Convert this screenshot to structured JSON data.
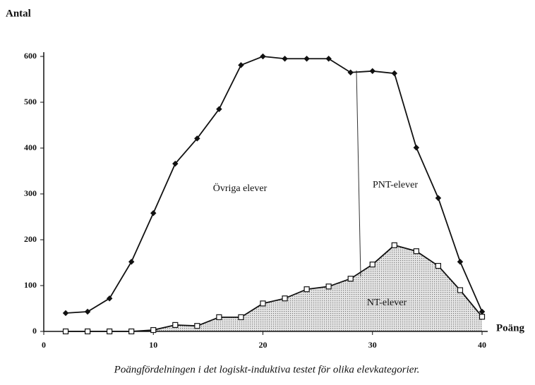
{
  "chart_data": {
    "type": "line",
    "y_label": "Antal",
    "x_label": "Poäng",
    "caption": "Poängfördelningen i det logiskt-induktiva testet för olika elevkategorier.",
    "annotation": "PNT-elever",
    "x": [
      2,
      4,
      6,
      8,
      10,
      12,
      14,
      16,
      18,
      20,
      22,
      24,
      26,
      28,
      30,
      32,
      34,
      36,
      38,
      40
    ],
    "series": [
      {
        "name": "Övriga elever",
        "color": "#111111",
        "values": [
          40,
          43,
          72,
          152,
          258,
          366,
          421,
          485,
          581,
          600,
          595,
          595,
          595,
          565,
          568,
          563,
          401,
          291,
          152,
          43
        ]
      },
      {
        "name": "NT-elever",
        "color": "#111111",
        "values": [
          0,
          0,
          0,
          0,
          3,
          14,
          12,
          31,
          31,
          61,
          72,
          92,
          98,
          115,
          146,
          188,
          175,
          143,
          90,
          32
        ]
      }
    ],
    "xlim": [
      0,
      40
    ],
    "xticks": [
      0,
      10,
      20,
      30,
      40
    ],
    "ylim": [
      0,
      600
    ],
    "yticks": [
      0,
      100,
      200,
      300,
      400,
      500,
      600
    ],
    "grid": false
  }
}
